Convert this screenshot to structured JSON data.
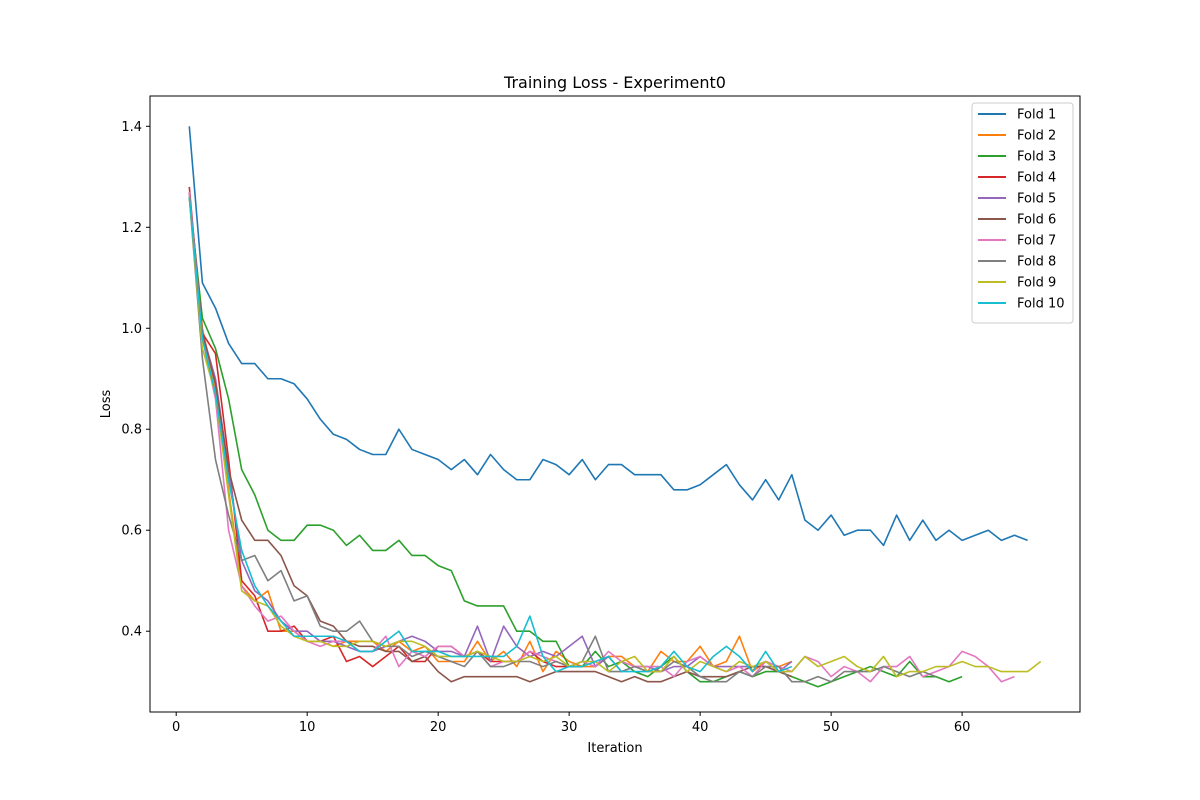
{
  "chart_data": {
    "type": "line",
    "title": "Training Loss - Experiment0",
    "xlabel": "Iteration",
    "ylabel": "Loss",
    "xlim": [
      -2,
      69
    ],
    "ylim": [
      0.24,
      1.46
    ],
    "xticks": [
      0,
      10,
      20,
      30,
      40,
      50,
      60
    ],
    "yticks": [
      0.4,
      0.6,
      0.8,
      1.0,
      1.2,
      1.4
    ],
    "ytick_labels": [
      "0.4",
      "0.6",
      "0.8",
      "1.0",
      "1.2",
      "1.4"
    ],
    "grid": false,
    "legend_position": "top-right",
    "series": [
      {
        "name": "Fold 1",
        "color": "#1f77b4",
        "values": [
          1.4,
          1.09,
          1.04,
          0.97,
          0.93,
          0.93,
          0.9,
          0.9,
          0.89,
          0.86,
          0.82,
          0.79,
          0.78,
          0.76,
          0.75,
          0.75,
          0.8,
          0.76,
          0.75,
          0.74,
          0.72,
          0.74,
          0.71,
          0.75,
          0.72,
          0.7,
          0.7,
          0.74,
          0.73,
          0.71,
          0.74,
          0.7,
          0.73,
          0.73,
          0.71,
          0.71,
          0.71,
          0.68,
          0.68,
          0.69,
          0.71,
          0.73,
          0.69,
          0.66,
          0.7,
          0.66,
          0.71,
          0.62,
          0.6,
          0.63,
          0.59,
          0.6,
          0.6,
          0.57,
          0.63,
          0.58,
          0.62,
          0.58,
          0.6,
          0.58,
          0.59,
          0.6,
          0.58,
          0.59,
          0.58
        ]
      },
      {
        "name": "Fold 2",
        "color": "#ff7f0e",
        "values": [
          1.27,
          1.0,
          0.88,
          0.68,
          0.49,
          0.46,
          0.48,
          0.4,
          0.4,
          0.38,
          0.38,
          0.37,
          0.38,
          0.38,
          0.38,
          0.36,
          0.38,
          0.36,
          0.37,
          0.34,
          0.34,
          0.34,
          0.38,
          0.34,
          0.36,
          0.33,
          0.38,
          0.32,
          0.36,
          0.34,
          0.33,
          0.33,
          0.35,
          0.35,
          0.33,
          0.32,
          0.36,
          0.34,
          0.34,
          0.37,
          0.33,
          0.34,
          0.39,
          0.32,
          0.34,
          0.33,
          0.34
        ]
      },
      {
        "name": "Fold 3",
        "color": "#2ca02c",
        "values": [
          1.26,
          1.02,
          0.96,
          0.86,
          0.72,
          0.67,
          0.6,
          0.58,
          0.58,
          0.61,
          0.61,
          0.6,
          0.57,
          0.59,
          0.56,
          0.56,
          0.58,
          0.55,
          0.55,
          0.53,
          0.52,
          0.46,
          0.45,
          0.45,
          0.45,
          0.4,
          0.4,
          0.38,
          0.38,
          0.33,
          0.33,
          0.36,
          0.33,
          0.34,
          0.32,
          0.31,
          0.33,
          0.35,
          0.32,
          0.3,
          0.3,
          0.31,
          0.32,
          0.31,
          0.32,
          0.32,
          0.31,
          0.3,
          0.29,
          0.3,
          0.31,
          0.32,
          0.33,
          0.32,
          0.31,
          0.34,
          0.31,
          0.31,
          0.3,
          0.31
        ]
      },
      {
        "name": "Fold 4",
        "color": "#d62728",
        "values": [
          1.28,
          0.99,
          0.95,
          0.74,
          0.5,
          0.47,
          0.4,
          0.4,
          0.41,
          0.38,
          0.38,
          0.39,
          0.34,
          0.35,
          0.33,
          0.35,
          0.37,
          0.34,
          0.34,
          0.37,
          0.37,
          0.35,
          0.36,
          0.34,
          0.34,
          0.34,
          0.36,
          0.34,
          0.33,
          0.33,
          0.33
        ]
      },
      {
        "name": "Fold 5",
        "color": "#9467bd",
        "values": [
          1.27,
          0.99,
          0.9,
          0.72,
          0.54,
          0.48,
          0.46,
          0.42,
          0.4,
          0.4,
          0.38,
          0.38,
          0.37,
          0.36,
          0.36,
          0.37,
          0.38,
          0.39,
          0.38,
          0.36,
          0.36,
          0.35,
          0.41,
          0.34,
          0.41,
          0.37,
          0.35,
          0.36,
          0.35,
          0.37,
          0.39,
          0.33,
          0.35,
          0.32,
          0.33,
          0.33,
          0.32,
          0.33,
          0.33,
          0.35,
          0.33,
          0.33,
          0.33,
          0.33,
          0.33,
          0.32,
          0.34
        ]
      },
      {
        "name": "Fold 6",
        "color": "#8c564b",
        "values": [
          1.27,
          0.99,
          0.89,
          0.72,
          0.62,
          0.58,
          0.58,
          0.55,
          0.49,
          0.47,
          0.42,
          0.41,
          0.38,
          0.37,
          0.37,
          0.36,
          0.36,
          0.34,
          0.35,
          0.32,
          0.3,
          0.31,
          0.31,
          0.31,
          0.31,
          0.31,
          0.3,
          0.31,
          0.32,
          0.32,
          0.32,
          0.32,
          0.31,
          0.3,
          0.31,
          0.3,
          0.3,
          0.31,
          0.32,
          0.31,
          0.31,
          0.31,
          0.32,
          0.33,
          0.33,
          0.32,
          0.31
        ]
      },
      {
        "name": "Fold 7",
        "color": "#e377c2",
        "values": [
          1.27,
          0.98,
          0.86,
          0.6,
          0.49,
          0.45,
          0.42,
          0.43,
          0.4,
          0.38,
          0.37,
          0.38,
          0.38,
          0.36,
          0.36,
          0.39,
          0.33,
          0.36,
          0.35,
          0.37,
          0.37,
          0.35,
          0.36,
          0.33,
          0.34,
          0.34,
          0.36,
          0.35,
          0.34,
          0.33,
          0.34,
          0.33,
          0.36,
          0.34,
          0.33,
          0.33,
          0.33,
          0.31,
          0.34,
          0.35,
          0.33,
          0.32,
          0.33,
          0.31,
          0.34,
          0.33,
          0.32,
          0.35,
          0.34,
          0.31,
          0.33,
          0.32,
          0.3,
          0.33,
          0.33,
          0.35,
          0.31,
          0.32,
          0.33,
          0.36,
          0.35,
          0.33,
          0.3,
          0.31
        ]
      },
      {
        "name": "Fold 8",
        "color": "#7f7f7f",
        "values": [
          1.26,
          0.94,
          0.74,
          0.63,
          0.54,
          0.55,
          0.5,
          0.52,
          0.46,
          0.47,
          0.41,
          0.4,
          0.4,
          0.42,
          0.38,
          0.37,
          0.37,
          0.35,
          0.36,
          0.35,
          0.34,
          0.33,
          0.36,
          0.33,
          0.33,
          0.34,
          0.34,
          0.33,
          0.34,
          0.33,
          0.34,
          0.39,
          0.32,
          0.32,
          0.33,
          0.32,
          0.32,
          0.34,
          0.33,
          0.31,
          0.3,
          0.3,
          0.32,
          0.31,
          0.33,
          0.33,
          0.3,
          0.3,
          0.31,
          0.3,
          0.32,
          0.32,
          0.32,
          0.33,
          0.32,
          0.31,
          0.32,
          0.31
        ]
      },
      {
        "name": "Fold 9",
        "color": "#bcbd22",
        "values": [
          1.26,
          0.96,
          0.87,
          0.67,
          0.48,
          0.46,
          0.45,
          0.41,
          0.39,
          0.38,
          0.38,
          0.37,
          0.37,
          0.38,
          0.38,
          0.37,
          0.38,
          0.38,
          0.37,
          0.35,
          0.35,
          0.35,
          0.36,
          0.35,
          0.34,
          0.34,
          0.35,
          0.34,
          0.35,
          0.33,
          0.34,
          0.34,
          0.32,
          0.34,
          0.35,
          0.32,
          0.32,
          0.35,
          0.32,
          0.34,
          0.33,
          0.32,
          0.34,
          0.33,
          0.34,
          0.32,
          0.32,
          0.35,
          0.33,
          0.34,
          0.35,
          0.33,
          0.32,
          0.35,
          0.31,
          0.32,
          0.32,
          0.33,
          0.33,
          0.34,
          0.33,
          0.33,
          0.32,
          0.32,
          0.32,
          0.34
        ]
      },
      {
        "name": "Fold 10",
        "color": "#17becf",
        "values": [
          1.26,
          0.98,
          0.87,
          0.7,
          0.56,
          0.49,
          0.45,
          0.42,
          0.39,
          0.39,
          0.39,
          0.39,
          0.38,
          0.36,
          0.36,
          0.38,
          0.4,
          0.36,
          0.36,
          0.36,
          0.35,
          0.35,
          0.35,
          0.35,
          0.35,
          0.37,
          0.43,
          0.35,
          0.32,
          0.33,
          0.33,
          0.34,
          0.35,
          0.32,
          0.32,
          0.32,
          0.33,
          0.36,
          0.33,
          0.32,
          0.35,
          0.37,
          0.35,
          0.32,
          0.36,
          0.32,
          0.33
        ]
      }
    ]
  }
}
